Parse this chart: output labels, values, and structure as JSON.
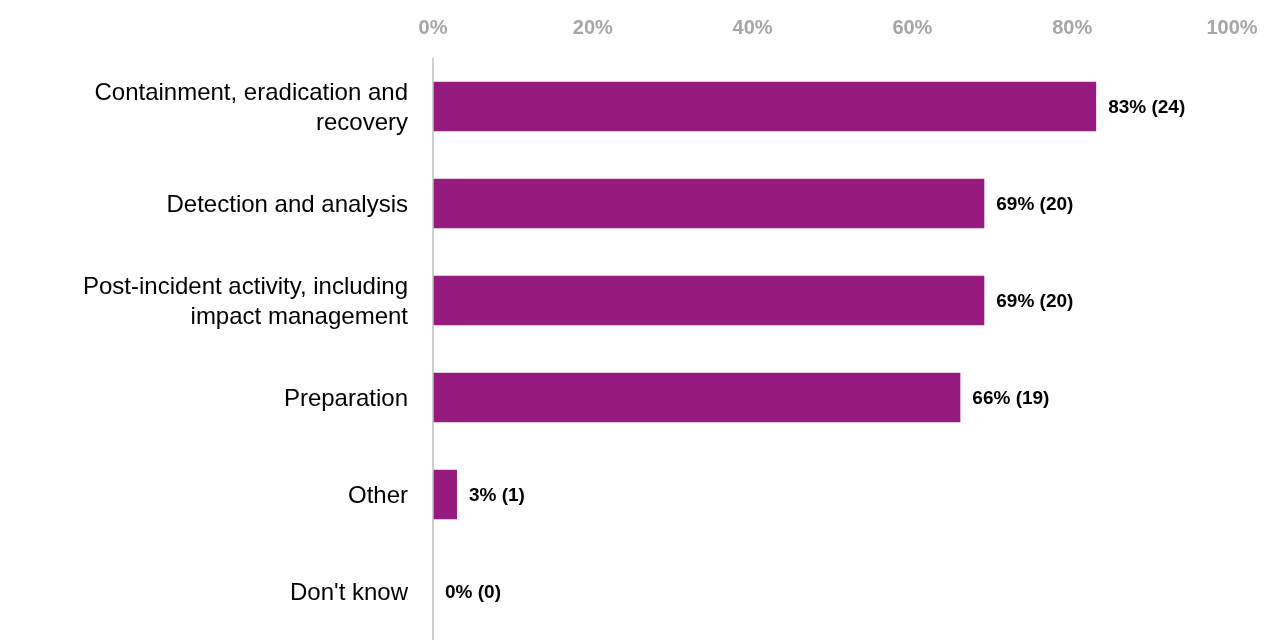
{
  "chart_data": {
    "type": "bar",
    "orientation": "horizontal",
    "categories": [
      "Containment, eradication and recovery",
      "Detection and analysis",
      "Post-incident activity, including impact management",
      "Preparation",
      "Other",
      "Don't know"
    ],
    "values": [
      83,
      69,
      69,
      66,
      3,
      0
    ],
    "color": "#951b7e",
    "value_labels": [
      "83% (24)",
      "69% (20)",
      "69% (20)",
      "66% (19)",
      "3% (1)",
      "0% (0)"
    ],
    "xlim": [
      0,
      100
    ],
    "xticks": [
      {
        "value": 0,
        "label": "0%"
      },
      {
        "value": 20,
        "label": "20%"
      },
      {
        "value": 40,
        "label": "40%"
      },
      {
        "value": 60,
        "label": "60%"
      },
      {
        "value": 80,
        "label": "80%"
      },
      {
        "value": 100,
        "label": "100%"
      }
    ],
    "grid": false
  }
}
